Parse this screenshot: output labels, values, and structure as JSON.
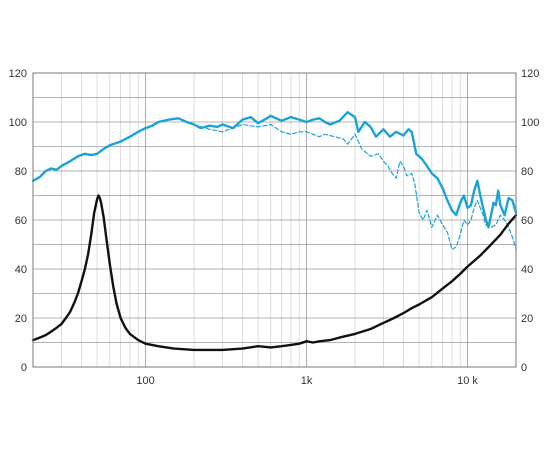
{
  "chart_data": {
    "type": "line",
    "title": "",
    "xlabel": "",
    "ylabel": "",
    "x_scale": "log",
    "xlim": [
      20,
      20000
    ],
    "ylim": [
      0,
      120
    ],
    "grid": true,
    "x_tick_labels": [
      {
        "value": 100,
        "label": "100"
      },
      {
        "value": 1000,
        "label": "1k"
      },
      {
        "value": 10000,
        "label": "10 k"
      }
    ],
    "y_tick_labels_left": [
      "0",
      "20",
      "40",
      "60",
      "80",
      "100",
      "120"
    ],
    "y_tick_labels_right": [
      "0",
      "20",
      "40",
      "60",
      "80",
      "100",
      "120"
    ],
    "y_ticks": [
      0,
      20,
      40,
      60,
      80,
      100,
      120
    ],
    "series": [
      {
        "color": "#1aa3d4",
        "style": "solid",
        "points": [
          [
            20,
            76
          ],
          [
            22,
            77.5
          ],
          [
            24,
            80
          ],
          [
            26,
            81
          ],
          [
            28,
            80.5
          ],
          [
            30,
            82
          ],
          [
            34,
            84
          ],
          [
            38,
            86
          ],
          [
            42,
            87
          ],
          [
            46,
            86.5
          ],
          [
            50,
            87
          ],
          [
            55,
            89
          ],
          [
            60,
            90.5
          ],
          [
            70,
            92
          ],
          [
            80,
            94
          ],
          [
            90,
            96
          ],
          [
            100,
            97.5
          ],
          [
            110,
            98.5
          ],
          [
            120,
            100
          ],
          [
            140,
            101
          ],
          [
            160,
            101.5
          ],
          [
            180,
            100
          ],
          [
            200,
            99
          ],
          [
            220,
            97.5
          ],
          [
            250,
            98.5
          ],
          [
            280,
            98
          ],
          [
            300,
            99
          ],
          [
            350,
            97.5
          ],
          [
            400,
            101
          ],
          [
            450,
            102
          ],
          [
            500,
            99.5
          ],
          [
            550,
            101
          ],
          [
            600,
            102.5
          ],
          [
            700,
            100.5
          ],
          [
            800,
            102
          ],
          [
            900,
            101
          ],
          [
            1000,
            100
          ],
          [
            1100,
            101
          ],
          [
            1200,
            101.5
          ],
          [
            1300,
            100
          ],
          [
            1400,
            99
          ],
          [
            1600,
            100.5
          ],
          [
            1800,
            104
          ],
          [
            2000,
            102
          ],
          [
            2100,
            96
          ],
          [
            2300,
            100
          ],
          [
            2500,
            98
          ],
          [
            2700,
            94
          ],
          [
            3000,
            97
          ],
          [
            3300,
            94
          ],
          [
            3600,
            96
          ],
          [
            4000,
            94.5
          ],
          [
            4300,
            97
          ],
          [
            4500,
            96
          ],
          [
            4800,
            87
          ],
          [
            5200,
            85
          ],
          [
            5600,
            82
          ],
          [
            6000,
            79
          ],
          [
            6500,
            77
          ],
          [
            7000,
            73
          ],
          [
            7500,
            68
          ],
          [
            8000,
            64
          ],
          [
            8500,
            62
          ],
          [
            9000,
            67
          ],
          [
            9500,
            70
          ],
          [
            10000,
            65
          ],
          [
            10500,
            66
          ],
          [
            11000,
            72
          ],
          [
            11500,
            76
          ],
          [
            12000,
            70
          ],
          [
            12500,
            65
          ],
          [
            13000,
            60
          ],
          [
            13500,
            57
          ],
          [
            14000,
            62
          ],
          [
            14500,
            67
          ],
          [
            15000,
            66
          ],
          [
            15500,
            72
          ],
          [
            16000,
            66
          ],
          [
            17000,
            62
          ],
          [
            18000,
            69
          ],
          [
            19000,
            68
          ],
          [
            20000,
            63
          ]
        ]
      },
      {
        "color": "#1aa3d4",
        "style": "dashed",
        "points": [
          [
            200,
            99
          ],
          [
            250,
            97
          ],
          [
            300,
            96
          ],
          [
            400,
            99
          ],
          [
            500,
            98
          ],
          [
            600,
            99
          ],
          [
            700,
            96
          ],
          [
            800,
            95
          ],
          [
            900,
            96
          ],
          [
            1000,
            96
          ],
          [
            1100,
            95
          ],
          [
            1200,
            94
          ],
          [
            1300,
            95
          ],
          [
            1500,
            94
          ],
          [
            1700,
            93
          ],
          [
            1800,
            91
          ],
          [
            2000,
            95
          ],
          [
            2200,
            89
          ],
          [
            2500,
            86
          ],
          [
            2800,
            87
          ],
          [
            3000,
            84
          ],
          [
            3200,
            82
          ],
          [
            3400,
            79
          ],
          [
            3600,
            77
          ],
          [
            3800,
            84
          ],
          [
            4000,
            82
          ],
          [
            4200,
            78
          ],
          [
            4500,
            79
          ],
          [
            4700,
            75
          ],
          [
            5000,
            63
          ],
          [
            5300,
            60
          ],
          [
            5600,
            64
          ],
          [
            6000,
            57
          ],
          [
            6500,
            62
          ],
          [
            7000,
            58
          ],
          [
            7500,
            55
          ],
          [
            8000,
            48
          ],
          [
            8500,
            49
          ],
          [
            9000,
            54
          ],
          [
            9500,
            60
          ],
          [
            10000,
            58
          ],
          [
            10500,
            60
          ],
          [
            11000,
            65
          ],
          [
            11500,
            68
          ],
          [
            12000,
            65
          ],
          [
            12500,
            62
          ],
          [
            13000,
            58
          ],
          [
            14000,
            57
          ],
          [
            15000,
            58
          ],
          [
            16000,
            62
          ],
          [
            17000,
            60
          ],
          [
            18000,
            57
          ],
          [
            19000,
            53
          ],
          [
            20000,
            48
          ]
        ]
      },
      {
        "color": "#111111",
        "style": "solid",
        "points": [
          [
            20,
            11
          ],
          [
            22,
            12
          ],
          [
            24,
            13
          ],
          [
            26,
            14.5
          ],
          [
            28,
            16
          ],
          [
            30,
            17.5
          ],
          [
            32,
            20
          ],
          [
            34,
            22.5
          ],
          [
            36,
            26
          ],
          [
            38,
            30
          ],
          [
            40,
            35
          ],
          [
            42,
            40
          ],
          [
            44,
            46
          ],
          [
            46,
            54
          ],
          [
            48,
            63
          ],
          [
            50,
            68.5
          ],
          [
            51,
            70
          ],
          [
            52,
            69
          ],
          [
            53,
            67
          ],
          [
            55,
            61
          ],
          [
            57,
            53
          ],
          [
            60,
            42
          ],
          [
            63,
            33
          ],
          [
            66,
            26
          ],
          [
            70,
            20
          ],
          [
            75,
            16
          ],
          [
            80,
            13.5
          ],
          [
            90,
            11
          ],
          [
            100,
            9.5
          ],
          [
            120,
            8.5
          ],
          [
            150,
            7.5
          ],
          [
            200,
            7
          ],
          [
            250,
            7
          ],
          [
            300,
            7
          ],
          [
            400,
            7.5
          ],
          [
            500,
            8.5
          ],
          [
            600,
            8
          ],
          [
            700,
            8.5
          ],
          [
            800,
            9
          ],
          [
            900,
            9.5
          ],
          [
            1000,
            10.5
          ],
          [
            1100,
            10
          ],
          [
            1200,
            10.5
          ],
          [
            1400,
            11
          ],
          [
            1600,
            12
          ],
          [
            2000,
            13.5
          ],
          [
            2500,
            15.5
          ],
          [
            3000,
            18
          ],
          [
            3500,
            20
          ],
          [
            4000,
            22
          ],
          [
            4500,
            24
          ],
          [
            5000,
            25.5
          ],
          [
            6000,
            28.5
          ],
          [
            7000,
            32
          ],
          [
            8000,
            35
          ],
          [
            9000,
            38
          ],
          [
            10000,
            41
          ],
          [
            12000,
            45.5
          ],
          [
            14000,
            50
          ],
          [
            16000,
            54
          ],
          [
            18000,
            58.5
          ],
          [
            20000,
            62
          ]
        ]
      }
    ]
  }
}
